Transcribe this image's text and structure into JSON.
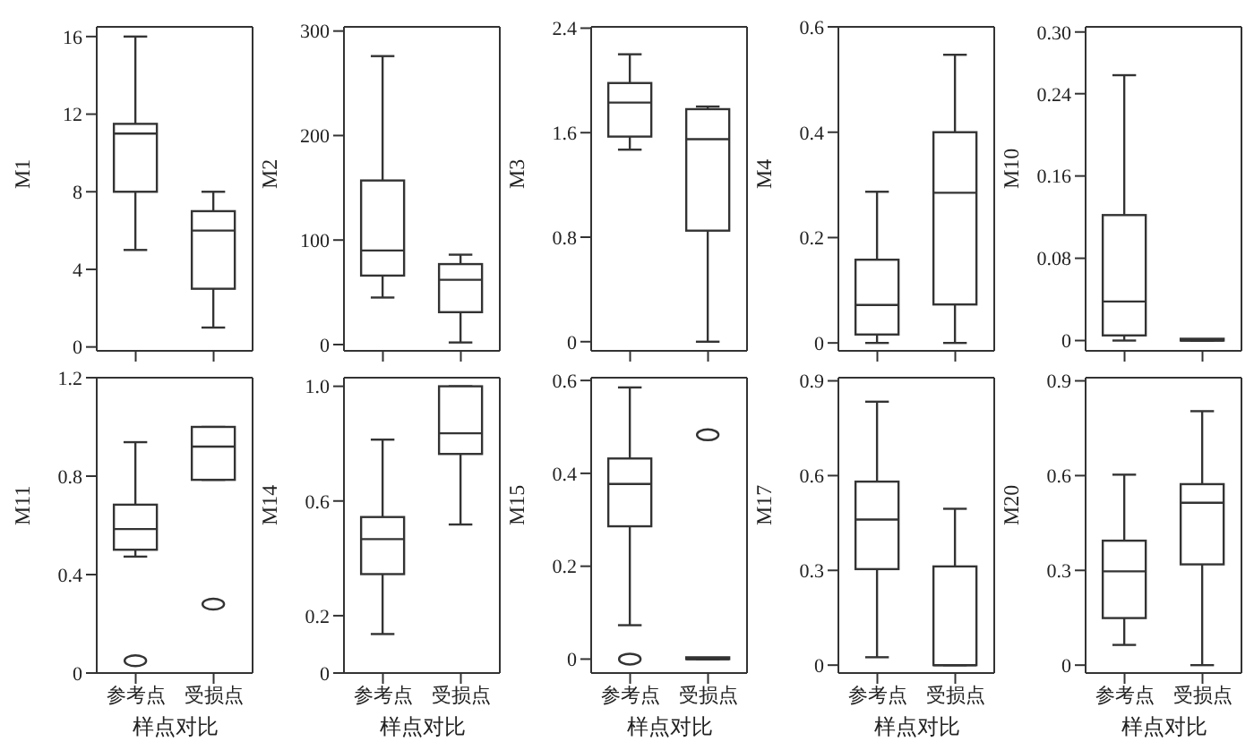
{
  "chart_data": [
    {
      "type": "box",
      "ylabel": "M1",
      "categories": [
        null,
        null
      ],
      "ylim": [
        -0.2,
        16.5
      ],
      "yticks": [
        0,
        4,
        8,
        12,
        16
      ],
      "boxes": [
        {
          "low": 5,
          "q1": 8,
          "median": 11,
          "q3": 11.5,
          "high": 16
        },
        {
          "low": 1,
          "q1": 3,
          "median": 6,
          "q3": 7,
          "high": 8
        }
      ]
    },
    {
      "type": "box",
      "ylabel": "M2",
      "categories": [
        null,
        null
      ],
      "ylim": [
        -6,
        304
      ],
      "yticks": [
        0,
        100,
        200,
        300
      ],
      "boxes": [
        {
          "low": 45,
          "q1": 66,
          "median": 90,
          "q3": 157,
          "high": 276
        },
        {
          "low": 2,
          "q1": 31,
          "median": 62,
          "q3": 77,
          "high": 86
        }
      ]
    },
    {
      "type": "box",
      "ylabel": "M3",
      "categories": [
        null,
        null
      ],
      "ylim": [
        -0.07,
        2.41
      ],
      "yticks": [
        0,
        0.8,
        1.6,
        2.4
      ],
      "boxes": [
        {
          "low": 1.47,
          "q1": 1.57,
          "median": 1.83,
          "q3": 1.98,
          "high": 2.2
        },
        {
          "low": 0,
          "q1": 0.85,
          "median": 1.55,
          "q3": 1.78,
          "high": 1.8
        }
      ]
    },
    {
      "type": "box",
      "ylabel": "M4",
      "categories": [
        null,
        null
      ],
      "ylim": [
        -0.015,
        0.6
      ],
      "yticks": [
        0,
        0.2,
        0.4,
        0.6
      ],
      "boxes": [
        {
          "low": 0,
          "q1": 0.016,
          "median": 0.072,
          "q3": 0.158,
          "high": 0.287
        },
        {
          "low": 0,
          "q1": 0.073,
          "median": 0.285,
          "q3": 0.4,
          "high": 0.547
        }
      ]
    },
    {
      "type": "box",
      "ylabel": "M10",
      "categories": [
        null,
        null
      ],
      "ylim": [
        -0.01,
        0.305
      ],
      "yticks": [
        0,
        0.08,
        0.16,
        0.24,
        {
          "value": 0.3,
          "label": "0.30"
        }
      ],
      "boxes": [
        {
          "low": 0,
          "q1": 0.005,
          "median": 0.038,
          "q3": 0.122,
          "high": 0.258
        },
        {
          "low": 0,
          "q1": 0,
          "median": 0,
          "q3": 0,
          "high": 0
        }
      ]
    },
    {
      "type": "box",
      "ylabel": "M11",
      "xlabel": "样点对比",
      "categories": [
        "参考点",
        "受损点"
      ],
      "ylim": [
        0,
        1.2
      ],
      "yticks": [
        0,
        0.4,
        0.8,
        1.2
      ],
      "boxes": [
        {
          "low": 0.473,
          "q1": 0.501,
          "median": 0.585,
          "q3": 0.684,
          "high": 0.938,
          "outliers": [
            0.05
          ]
        },
        {
          "low": 0.785,
          "q1": 0.785,
          "median": 0.92,
          "q3": 1.0,
          "high": 1.0,
          "outliers": [
            0.28
          ]
        }
      ]
    },
    {
      "type": "box",
      "ylabel": "M14",
      "xlabel": "样点对比",
      "categories": [
        "参考点",
        "受损点"
      ],
      "ylim": [
        0,
        1.03
      ],
      "yticks": [
        0,
        0.2,
        0.6,
        {
          "value": 1,
          "label": "1.0"
        }
      ],
      "boxes": [
        {
          "low": 0.136,
          "q1": 0.345,
          "median": 0.467,
          "q3": 0.544,
          "high": 0.814
        },
        {
          "low": 0.518,
          "q1": 0.764,
          "median": 0.836,
          "q3": 1.0,
          "high": 1.0
        }
      ]
    },
    {
      "type": "box",
      "ylabel": "M15",
      "xlabel": "样点对比",
      "categories": [
        "参考点",
        "受损点"
      ],
      "ylim": [
        -0.03,
        0.606
      ],
      "yticks": [
        0,
        0.2,
        0.4,
        0.6
      ],
      "boxes": [
        {
          "low": 0.073,
          "q1": 0.286,
          "median": 0.377,
          "q3": 0.432,
          "high": 0.585,
          "outliers": [
            0
          ]
        },
        {
          "low": 0,
          "q1": 0,
          "median": 0,
          "q3": 0,
          "high": 0,
          "outliers": [
            0.483
          ]
        }
      ]
    },
    {
      "type": "box",
      "ylabel": "M17",
      "xlabel": "样点对比",
      "categories": [
        "参考点",
        "受损点"
      ],
      "ylim": [
        -0.025,
        0.91
      ],
      "yticks": [
        0,
        0.3,
        0.6,
        0.9
      ],
      "boxes": [
        {
          "low": 0.025,
          "q1": 0.304,
          "median": 0.461,
          "q3": 0.581,
          "high": 0.834
        },
        {
          "low": 0,
          "q1": 0,
          "median": 0,
          "q3": 0.3125,
          "high": 0.495
        }
      ]
    },
    {
      "type": "box",
      "ylabel": "M20",
      "xlabel": "样点对比",
      "categories": [
        "参考点",
        "受损点"
      ],
      "ylim": [
        -0.025,
        0.91
      ],
      "yticks": [
        0,
        0.3,
        0.6,
        0.9
      ],
      "boxes": [
        {
          "low": 0.064,
          "q1": 0.149,
          "median": 0.297,
          "q3": 0.394,
          "high": 0.603
        },
        {
          "low": 0,
          "q1": 0.319,
          "median": 0.514,
          "q3": 0.573,
          "high": 0.804
        }
      ]
    }
  ]
}
